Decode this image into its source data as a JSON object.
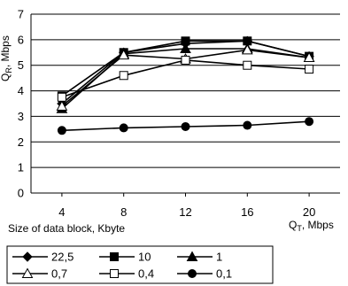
{
  "chart_data": {
    "type": "line",
    "x": [
      4,
      8,
      12,
      16,
      20
    ],
    "xticks": [
      "4",
      "8",
      "12",
      "16",
      "20"
    ],
    "yticks": [
      "0",
      "1",
      "2",
      "3",
      "4",
      "5",
      "6",
      "7"
    ],
    "ylim": [
      0,
      7
    ],
    "ylabel": "Q",
    "ylabel_sub": "R",
    "ylabel_unit": ", Mbps",
    "xlabel": "Size of data block, Kbyte",
    "x2label": "Q",
    "x2label_sub": "T",
    "x2label_unit": ", Mbps",
    "grid": "horizontal",
    "legend_position": "bottom",
    "series": [
      {
        "name": "22,5",
        "marker": "diamond-filled",
        "values": [
          3.5,
          5.5,
          5.85,
          5.95,
          5.35
        ]
      },
      {
        "name": "10",
        "marker": "square-filled",
        "values": [
          3.8,
          5.5,
          5.95,
          5.95,
          5.35
        ]
      },
      {
        "name": "1",
        "marker": "triangle-filled",
        "values": [
          3.3,
          5.45,
          5.65,
          5.65,
          5.3
        ]
      },
      {
        "name": "0,7",
        "marker": "triangle-open",
        "values": [
          3.4,
          5.4,
          5.25,
          5.6,
          5.3
        ]
      },
      {
        "name": "0,4",
        "marker": "square-open",
        "values": [
          3.75,
          4.6,
          5.2,
          5.0,
          4.85
        ]
      },
      {
        "name": "0,1",
        "marker": "circle-filled",
        "values": [
          2.45,
          2.55,
          2.6,
          2.65,
          2.8
        ]
      }
    ]
  }
}
